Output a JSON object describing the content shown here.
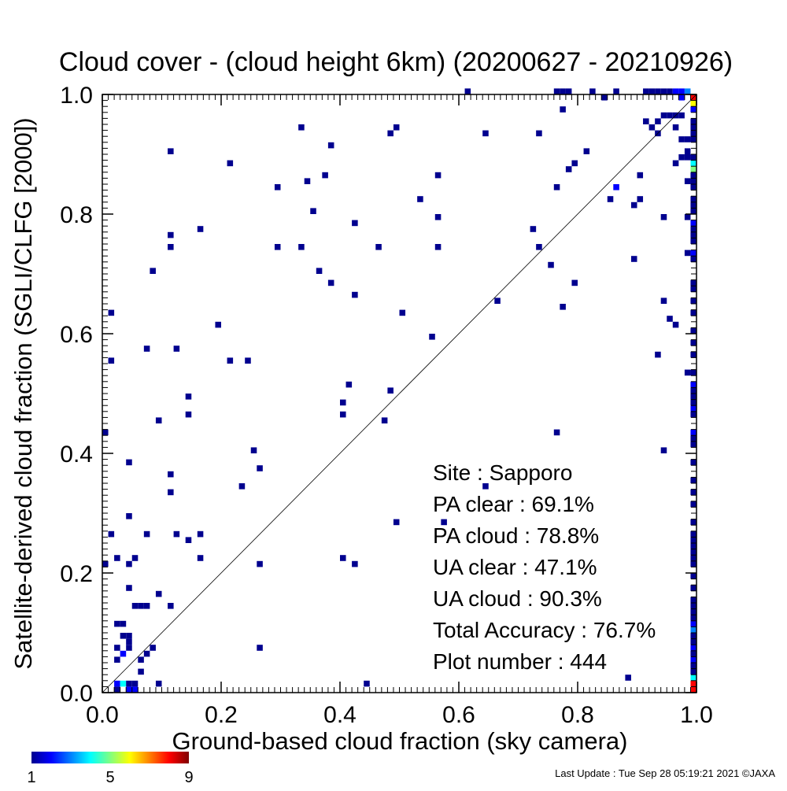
{
  "chart_data": {
    "type": "heatmap",
    "title": "Cloud cover - (cloud height 6km)  (20200627 - 20210926)",
    "xlabel": "Ground-based cloud fraction (sky camera)",
    "ylabel": "Satellite-derived cloud fraction (SGLI/CLFG [2000])",
    "xlim": [
      0,
      1
    ],
    "ylim": [
      0,
      1
    ],
    "xticks": [
      "0.0",
      "0.2",
      "0.4",
      "0.6",
      "0.8",
      "1.0"
    ],
    "yticks": [
      "0.0",
      "0.2",
      "0.4",
      "0.6",
      "0.8",
      "1.0"
    ],
    "diagonal_line": true,
    "stats": [
      {
        "label": "Site : Sapporo"
      },
      {
        "label": "PA clear :  69.1%"
      },
      {
        "label": "PA cloud :  78.8%"
      },
      {
        "label": "UA clear :  47.1%"
      },
      {
        "label": "UA cloud :  90.3%"
      },
      {
        "label": "Total Accuracy :  76.7%"
      },
      {
        "label": "Plot number :       444"
      }
    ],
    "colorbar": {
      "min_label": "1",
      "mid_label": "5",
      "max_label": "9",
      "colors": [
        "#00008f",
        "#0000ff",
        "#0080ff",
        "#00ffff",
        "#80ff80",
        "#ffff00",
        "#ff8000",
        "#ff0000",
        "#800000"
      ]
    },
    "points": [
      [
        0.11,
        0.9,
        1
      ],
      [
        0.21,
        0.88,
        1
      ],
      [
        0.33,
        0.94,
        1
      ],
      [
        0.38,
        0.91,
        1
      ],
      [
        0.48,
        0.93,
        1
      ],
      [
        0.49,
        0.94,
        1
      ],
      [
        0.64,
        0.93,
        1
      ],
      [
        0.73,
        0.93,
        1
      ],
      [
        0.29,
        0.84,
        1
      ],
      [
        0.34,
        0.85,
        1
      ],
      [
        0.37,
        0.86,
        1
      ],
      [
        0.35,
        0.8,
        1
      ],
      [
        0.53,
        0.82,
        1
      ],
      [
        0.56,
        0.86,
        1
      ],
      [
        0.56,
        0.79,
        1
      ],
      [
        0.42,
        0.78,
        1
      ],
      [
        0.11,
        0.76,
        1
      ],
      [
        0.16,
        0.77,
        1
      ],
      [
        0.11,
        0.74,
        1
      ],
      [
        0.29,
        0.74,
        1
      ],
      [
        0.33,
        0.74,
        1
      ],
      [
        0.46,
        0.74,
        1
      ],
      [
        0.56,
        0.74,
        1
      ],
      [
        0.72,
        0.77,
        1
      ],
      [
        0.73,
        0.74,
        1
      ],
      [
        0.08,
        0.7,
        1
      ],
      [
        0.36,
        0.7,
        1
      ],
      [
        0.38,
        0.68,
        1
      ],
      [
        0.42,
        0.66,
        1
      ],
      [
        0.5,
        0.63,
        1
      ],
      [
        0.66,
        0.65,
        1
      ],
      [
        0.75,
        0.71,
        1
      ],
      [
        0.77,
        0.64,
        1
      ],
      [
        0.79,
        0.68,
        1
      ],
      [
        0.78,
        0.87,
        1
      ],
      [
        0.79,
        0.88,
        1
      ],
      [
        0.81,
        0.9,
        1
      ],
      [
        0.85,
        0.82,
        1
      ],
      [
        0.86,
        0.84,
        2
      ],
      [
        0.89,
        0.81,
        1
      ],
      [
        0.9,
        0.82,
        1
      ],
      [
        0.9,
        0.86,
        1
      ],
      [
        0.89,
        0.72,
        1
      ],
      [
        0.94,
        0.79,
        1
      ],
      [
        0.01,
        0.63,
        1
      ],
      [
        0.01,
        0.55,
        1
      ],
      [
        0.07,
        0.57,
        1
      ],
      [
        0.12,
        0.57,
        1
      ],
      [
        0.19,
        0.61,
        1
      ],
      [
        0.21,
        0.55,
        1
      ],
      [
        0.24,
        0.55,
        1
      ],
      [
        0.14,
        0.49,
        1
      ],
      [
        0.14,
        0.46,
        1
      ],
      [
        0.09,
        0.45,
        1
      ],
      [
        0.4,
        0.48,
        1
      ],
      [
        0.4,
        0.46,
        1
      ],
      [
        0.41,
        0.51,
        1
      ],
      [
        0.48,
        0.5,
        1
      ],
      [
        0.47,
        0.45,
        1
      ],
      [
        0.55,
        0.59,
        1
      ],
      [
        0.0,
        0.43,
        1
      ],
      [
        0.25,
        0.4,
        1
      ],
      [
        0.26,
        0.37,
        1
      ],
      [
        0.04,
        0.38,
        1
      ],
      [
        0.11,
        0.36,
        1
      ],
      [
        0.11,
        0.33,
        1
      ],
      [
        0.23,
        0.34,
        1
      ],
      [
        0.04,
        0.29,
        1
      ],
      [
        0.01,
        0.26,
        1
      ],
      [
        0.07,
        0.26,
        1
      ],
      [
        0.12,
        0.26,
        1
      ],
      [
        0.14,
        0.25,
        1
      ],
      [
        0.16,
        0.26,
        1
      ],
      [
        0.02,
        0.22,
        1
      ],
      [
        0.04,
        0.21,
        1
      ],
      [
        0.05,
        0.22,
        1
      ],
      [
        0.0,
        0.21,
        1
      ],
      [
        0.16,
        0.22,
        1
      ],
      [
        0.26,
        0.21,
        1
      ],
      [
        0.4,
        0.22,
        1
      ],
      [
        0.42,
        0.21,
        1
      ],
      [
        0.49,
        0.28,
        1
      ],
      [
        0.57,
        0.28,
        1
      ],
      [
        0.64,
        0.34,
        1
      ],
      [
        0.04,
        0.17,
        1
      ],
      [
        0.06,
        0.14,
        1
      ],
      [
        0.05,
        0.14,
        1
      ],
      [
        0.07,
        0.14,
        1
      ],
      [
        0.09,
        0.16,
        1
      ],
      [
        0.11,
        0.14,
        1
      ],
      [
        0.02,
        0.11,
        1
      ],
      [
        0.03,
        0.11,
        1
      ],
      [
        0.03,
        0.09,
        1
      ],
      [
        0.04,
        0.09,
        1
      ],
      [
        0.04,
        0.08,
        1
      ],
      [
        0.02,
        0.07,
        1
      ],
      [
        0.03,
        0.06,
        2
      ],
      [
        0.04,
        0.07,
        1
      ],
      [
        0.02,
        0.05,
        1
      ],
      [
        0.06,
        0.05,
        1
      ],
      [
        0.07,
        0.06,
        1
      ],
      [
        0.08,
        0.07,
        1
      ],
      [
        0.06,
        0.03,
        1
      ],
      [
        0.09,
        0.01,
        1
      ],
      [
        0.02,
        0.01,
        2
      ],
      [
        0.03,
        0.01,
        4
      ],
      [
        0.04,
        0.0,
        2
      ],
      [
        0.05,
        0.0,
        2
      ],
      [
        0.04,
        0.01,
        1
      ],
      [
        0.05,
        0.01,
        1
      ],
      [
        0.02,
        0.0,
        1
      ],
      [
        0.26,
        0.07,
        1
      ],
      [
        0.44,
        0.01,
        1
      ],
      [
        0.88,
        0.02,
        1
      ],
      [
        0.76,
        0.43,
        1
      ],
      [
        0.93,
        0.56,
        1
      ],
      [
        0.94,
        0.4,
        1
      ],
      [
        0.95,
        0.62,
        1
      ],
      [
        0.96,
        0.61,
        1
      ],
      [
        0.94,
        0.65,
        1
      ],
      [
        0.76,
        0.84,
        1
      ],
      [
        0.61,
        1.0,
        1
      ],
      [
        0.76,
        1.0,
        1
      ],
      [
        0.78,
        1.0,
        1
      ],
      [
        0.77,
        1.0,
        1
      ],
      [
        0.77,
        0.97,
        1
      ],
      [
        0.82,
        1.0,
        1
      ],
      [
        0.84,
        0.99,
        1
      ],
      [
        0.86,
        1.0,
        1
      ],
      [
        0.91,
        1.0,
        1
      ],
      [
        0.92,
        1.0,
        1
      ],
      [
        0.93,
        1.0,
        1
      ],
      [
        0.94,
        1.0,
        1
      ],
      [
        0.95,
        1.0,
        1
      ],
      [
        0.96,
        1.0,
        2
      ],
      [
        0.97,
        1.0,
        2
      ],
      [
        0.98,
        1.0,
        3
      ],
      [
        0.97,
        0.99,
        2
      ],
      [
        0.99,
        0.99,
        8
      ],
      [
        0.99,
        0.98,
        6
      ],
      [
        0.91,
        0.95,
        1
      ],
      [
        0.93,
        0.95,
        1
      ],
      [
        0.94,
        0.96,
        1
      ],
      [
        0.95,
        0.96,
        1
      ],
      [
        0.96,
        0.96,
        1
      ],
      [
        0.97,
        0.96,
        1
      ],
      [
        0.92,
        0.94,
        1
      ],
      [
        0.93,
        0.93,
        1
      ],
      [
        0.96,
        0.94,
        1
      ],
      [
        0.97,
        0.92,
        1
      ],
      [
        0.99,
        0.97,
        2
      ],
      [
        0.99,
        0.95,
        1
      ],
      [
        0.99,
        0.94,
        1
      ],
      [
        0.99,
        0.93,
        1
      ],
      [
        0.99,
        0.92,
        1
      ],
      [
        0.98,
        0.92,
        1
      ],
      [
        0.98,
        0.9,
        1
      ],
      [
        0.99,
        0.89,
        1
      ],
      [
        0.99,
        0.88,
        4
      ],
      [
        0.99,
        0.87,
        5
      ],
      [
        0.98,
        0.89,
        1
      ],
      [
        0.96,
        0.88,
        1
      ],
      [
        0.97,
        0.89,
        1
      ],
      [
        0.99,
        0.86,
        1
      ],
      [
        0.99,
        0.85,
        1
      ],
      [
        0.99,
        0.84,
        1
      ],
      [
        0.98,
        0.85,
        1
      ],
      [
        0.99,
        0.82,
        1
      ],
      [
        0.99,
        0.81,
        1
      ],
      [
        0.98,
        0.79,
        1
      ],
      [
        0.99,
        0.8,
        1
      ],
      [
        0.99,
        0.78,
        2
      ],
      [
        0.99,
        0.77,
        1
      ],
      [
        0.99,
        0.76,
        1
      ],
      [
        0.99,
        0.75,
        1
      ],
      [
        0.98,
        0.73,
        1
      ],
      [
        0.99,
        0.73,
        2
      ],
      [
        0.99,
        0.72,
        1
      ],
      [
        0.99,
        0.68,
        1
      ],
      [
        0.99,
        0.67,
        1
      ],
      [
        0.99,
        0.65,
        1
      ],
      [
        0.99,
        0.63,
        1
      ],
      [
        0.99,
        0.6,
        1
      ],
      [
        0.99,
        0.58,
        1
      ],
      [
        0.99,
        0.56,
        1
      ],
      [
        0.99,
        0.53,
        1
      ],
      [
        0.98,
        0.53,
        1
      ],
      [
        0.99,
        0.51,
        2
      ],
      [
        0.99,
        0.5,
        1
      ],
      [
        0.99,
        0.49,
        1
      ],
      [
        0.99,
        0.48,
        1
      ],
      [
        0.99,
        0.47,
        2
      ],
      [
        0.99,
        0.46,
        1
      ],
      [
        0.99,
        0.43,
        2
      ],
      [
        0.99,
        0.42,
        1
      ],
      [
        0.99,
        0.41,
        1
      ],
      [
        0.99,
        0.38,
        1
      ],
      [
        0.99,
        0.35,
        1
      ],
      [
        0.99,
        0.33,
        1
      ],
      [
        0.99,
        0.31,
        1
      ],
      [
        0.99,
        0.28,
        1
      ],
      [
        0.99,
        0.26,
        1
      ],
      [
        0.99,
        0.25,
        1
      ],
      [
        0.99,
        0.24,
        1
      ],
      [
        0.99,
        0.23,
        1
      ],
      [
        0.99,
        0.22,
        1
      ],
      [
        0.99,
        0.21,
        1
      ],
      [
        0.99,
        0.19,
        1
      ],
      [
        0.99,
        0.17,
        1
      ],
      [
        0.99,
        0.15,
        1
      ],
      [
        0.99,
        0.14,
        1
      ],
      [
        0.99,
        0.13,
        1
      ],
      [
        0.99,
        0.12,
        1
      ],
      [
        0.99,
        0.11,
        2
      ],
      [
        0.99,
        0.1,
        3
      ],
      [
        0.99,
        0.09,
        1
      ],
      [
        0.99,
        0.08,
        1
      ],
      [
        0.99,
        0.07,
        2
      ],
      [
        0.99,
        0.06,
        1
      ],
      [
        0.99,
        0.05,
        2
      ],
      [
        0.99,
        0.04,
        1
      ],
      [
        0.99,
        0.03,
        1
      ],
      [
        0.99,
        0.02,
        4
      ],
      [
        0.99,
        0.01,
        8
      ],
      [
        0.99,
        0.0,
        8
      ]
    ]
  },
  "footer": {
    "last_update": "Last Update : Tue Sep 28 05:19:21 2021  ©JAXA"
  }
}
